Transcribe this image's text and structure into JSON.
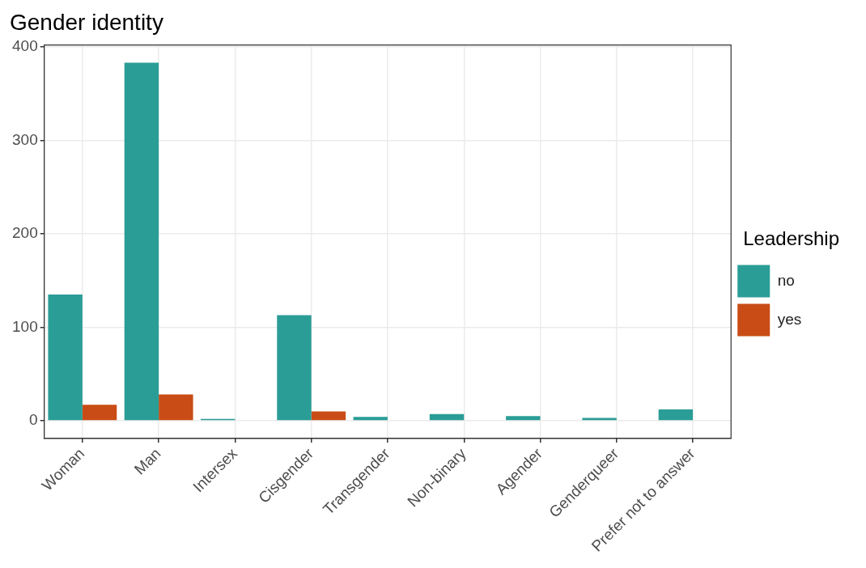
{
  "chart_data": {
    "type": "bar",
    "title": "Gender identity",
    "legend_title": "Leadership",
    "categories": [
      "Woman",
      "Man",
      "Intersex",
      "Cisgender",
      "Transgender",
      "Non-binary",
      "Agender",
      "Genderqueer",
      "Prefer not to answer"
    ],
    "series": [
      {
        "name": "no",
        "color": "#2a9d96",
        "values": [
          135,
          383,
          2,
          113,
          4,
          7,
          5,
          3,
          12
        ]
      },
      {
        "name": "yes",
        "color": "#c94c16",
        "values": [
          17,
          28,
          0,
          10,
          0,
          0,
          0,
          0,
          0
        ]
      }
    ],
    "ylim": [
      -19,
      402
    ],
    "yticks": [
      0,
      100,
      200,
      300,
      400
    ],
    "grid": true,
    "legend": "right"
  }
}
